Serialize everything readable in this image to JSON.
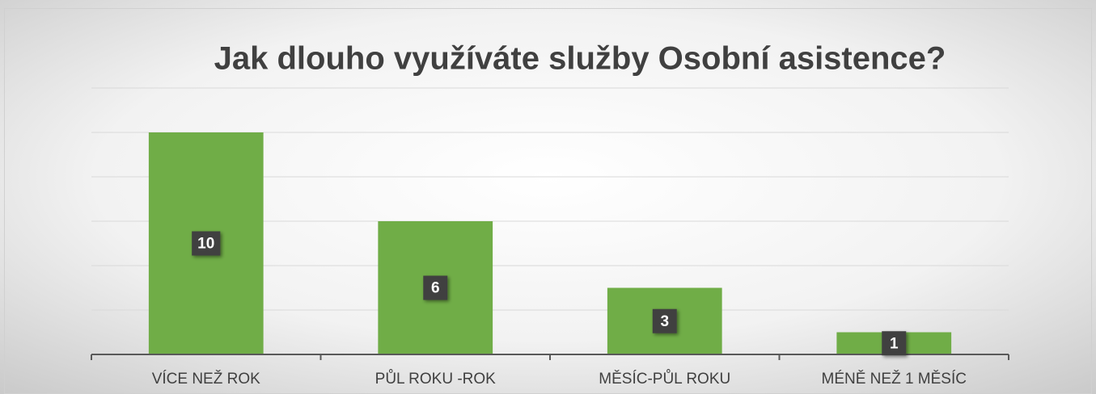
{
  "chart_data": {
    "type": "bar",
    "title": "Jak dlouho využíváte služby Osobní asistence?",
    "categories": [
      "VÍCE NEŽ ROK",
      "PŮL ROKU -ROK",
      "MĚSÍC-PŮL ROKU",
      "MÉNĚ NEŽ 1 MĚSÍC"
    ],
    "values": [
      10,
      6,
      3,
      1
    ],
    "color": "#70ad47",
    "ylim": [
      0,
      12
    ],
    "yticks": [
      0,
      2,
      4,
      6,
      8,
      10,
      12
    ],
    "grid": true,
    "show_tick_labels": false
  }
}
